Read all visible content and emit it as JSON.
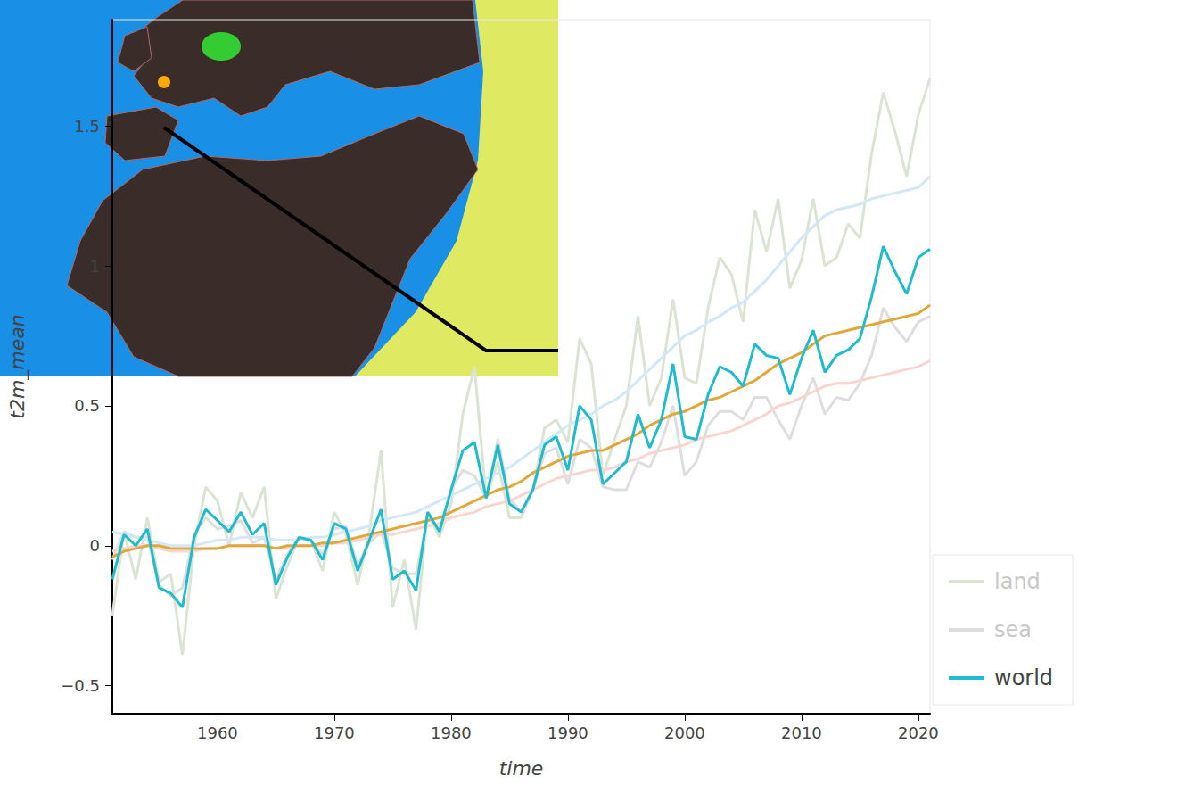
{
  "chart_data": {
    "type": "line",
    "x_label": "time",
    "y_label": "t2m_mean",
    "x": [
      1951,
      1952,
      1953,
      1954,
      1955,
      1956,
      1957,
      1958,
      1959,
      1960,
      1961,
      1962,
      1963,
      1964,
      1965,
      1966,
      1967,
      1968,
      1969,
      1970,
      1971,
      1972,
      1973,
      1974,
      1975,
      1976,
      1977,
      1978,
      1979,
      1980,
      1981,
      1982,
      1983,
      1984,
      1985,
      1986,
      1987,
      1988,
      1989,
      1990,
      1991,
      1992,
      1993,
      1994,
      1995,
      1996,
      1997,
      1998,
      1999,
      2000,
      2001,
      2002,
      2003,
      2004,
      2005,
      2006,
      2007,
      2008,
      2009,
      2010,
      2011,
      2012,
      2013,
      2014,
      2015,
      2016,
      2017,
      2018,
      2019,
      2020,
      2021
    ],
    "xlim": [
      1951,
      2021
    ],
    "xticks": [
      1960,
      1970,
      1980,
      1990,
      2000,
      2010,
      2020
    ],
    "ylim": [
      -0.6,
      1.88
    ],
    "yticks": [
      {
        "value": -0.5,
        "label": "−0.5"
      },
      0,
      0.5,
      1,
      1.5
    ],
    "grid": false,
    "legend": "right",
    "series": [
      {
        "name": "land",
        "color": "#dbe4d3",
        "line_style": "muted",
        "values": [
          -0.25,
          0.05,
          -0.12,
          0.1,
          -0.13,
          -0.1,
          -0.39,
          0.0,
          0.21,
          0.16,
          0.0,
          0.19,
          0.1,
          0.21,
          -0.19,
          -0.07,
          0.03,
          0.02,
          -0.09,
          0.12,
          0.04,
          -0.14,
          0.05,
          0.34,
          -0.22,
          -0.05,
          -0.3,
          0.12,
          0.03,
          0.15,
          0.47,
          0.64,
          0.17,
          0.3,
          0.1,
          0.1,
          0.2,
          0.42,
          0.45,
          0.37,
          0.74,
          0.65,
          0.25,
          0.38,
          0.5,
          0.82,
          0.5,
          0.6,
          0.88,
          0.6,
          0.58,
          0.85,
          1.03,
          0.97,
          0.8,
          1.2,
          1.05,
          1.24,
          0.92,
          1.02,
          1.24,
          1.0,
          1.03,
          1.15,
          1.1,
          1.4,
          1.62,
          1.48,
          1.32,
          1.54,
          1.67
        ]
      },
      {
        "name": "sea",
        "color": "#dedede",
        "line_style": "muted",
        "values": [
          -0.05,
          0.05,
          0.03,
          0.03,
          -0.14,
          -0.18,
          -0.15,
          0.04,
          0.1,
          0.06,
          0.07,
          0.09,
          0.01,
          0.03,
          -0.12,
          -0.03,
          0.03,
          0.02,
          -0.03,
          0.06,
          0.07,
          -0.07,
          0.01,
          0.05,
          -0.08,
          -0.1,
          -0.1,
          0.1,
          0.06,
          0.2,
          0.27,
          0.25,
          0.17,
          0.38,
          0.17,
          0.12,
          0.2,
          0.33,
          0.35,
          0.22,
          0.38,
          0.35,
          0.21,
          0.2,
          0.2,
          0.3,
          0.28,
          0.37,
          0.5,
          0.25,
          0.3,
          0.43,
          0.48,
          0.48,
          0.45,
          0.53,
          0.53,
          0.45,
          0.38,
          0.5,
          0.6,
          0.47,
          0.53,
          0.52,
          0.58,
          0.68,
          0.85,
          0.78,
          0.73,
          0.8,
          0.82
        ]
      },
      {
        "color": "#d2e8f7",
        "values": [
          0.05,
          0.04,
          0.03,
          0.02,
          0.01,
          0.0,
          0.0,
          0.0,
          0.01,
          0.02,
          0.02,
          0.03,
          0.03,
          0.03,
          0.02,
          0.02,
          0.02,
          0.03,
          0.03,
          0.04,
          0.05,
          0.06,
          0.07,
          0.09,
          0.1,
          0.11,
          0.12,
          0.14,
          0.16,
          0.18,
          0.2,
          0.22,
          0.24,
          0.26,
          0.28,
          0.31,
          0.34,
          0.37,
          0.4,
          0.43,
          0.45,
          0.47,
          0.5,
          0.52,
          0.55,
          0.59,
          0.63,
          0.67,
          0.71,
          0.75,
          0.77,
          0.8,
          0.82,
          0.85,
          0.87,
          0.91,
          0.95,
          1.0,
          1.05,
          1.1,
          1.14,
          1.18,
          1.2,
          1.21,
          1.22,
          1.24,
          1.25,
          1.26,
          1.27,
          1.28,
          1.32
        ]
      },
      {
        "color": "#f8d6cf",
        "values": [
          -0.02,
          -0.01,
          0.0,
          0.0,
          -0.01,
          -0.02,
          -0.02,
          -0.02,
          -0.01,
          -0.01,
          0.0,
          0.0,
          0.0,
          0.0,
          -0.01,
          -0.01,
          0.0,
          0.0,
          0.0,
          0.01,
          0.01,
          0.02,
          0.03,
          0.04,
          0.04,
          0.05,
          0.06,
          0.07,
          0.08,
          0.1,
          0.11,
          0.12,
          0.14,
          0.15,
          0.16,
          0.18,
          0.2,
          0.22,
          0.24,
          0.25,
          0.26,
          0.27,
          0.27,
          0.28,
          0.3,
          0.31,
          0.33,
          0.34,
          0.35,
          0.36,
          0.38,
          0.39,
          0.4,
          0.41,
          0.43,
          0.45,
          0.47,
          0.5,
          0.51,
          0.53,
          0.55,
          0.57,
          0.58,
          0.58,
          0.59,
          0.6,
          0.61,
          0.62,
          0.63,
          0.64,
          0.66
        ]
      },
      {
        "color": "#e0a83a",
        "values": [
          -0.04,
          -0.02,
          -0.01,
          0.0,
          0.0,
          -0.01,
          -0.01,
          -0.01,
          -0.01,
          -0.01,
          0.0,
          0.0,
          0.0,
          0.0,
          -0.01,
          0.0,
          0.0,
          0.0,
          0.01,
          0.01,
          0.02,
          0.03,
          0.04,
          0.05,
          0.06,
          0.07,
          0.08,
          0.09,
          0.1,
          0.12,
          0.14,
          0.16,
          0.18,
          0.2,
          0.21,
          0.23,
          0.26,
          0.28,
          0.3,
          0.32,
          0.33,
          0.34,
          0.34,
          0.36,
          0.38,
          0.4,
          0.43,
          0.45,
          0.47,
          0.48,
          0.5,
          0.52,
          0.53,
          0.55,
          0.57,
          0.59,
          0.62,
          0.65,
          0.67,
          0.69,
          0.72,
          0.75,
          0.76,
          0.77,
          0.78,
          0.79,
          0.8,
          0.81,
          0.82,
          0.83,
          0.86
        ]
      },
      {
        "name": "world",
        "color": "#1fbccd",
        "values": [
          -0.12,
          0.04,
          0.0,
          0.06,
          -0.15,
          -0.17,
          -0.22,
          0.03,
          0.13,
          0.09,
          0.05,
          0.12,
          0.04,
          0.08,
          -0.14,
          -0.04,
          0.03,
          0.02,
          -0.05,
          0.08,
          0.06,
          -0.09,
          0.02,
          0.13,
          -0.12,
          -0.09,
          -0.16,
          0.12,
          0.05,
          0.2,
          0.34,
          0.37,
          0.17,
          0.36,
          0.15,
          0.12,
          0.2,
          0.36,
          0.39,
          0.27,
          0.5,
          0.45,
          0.22,
          0.26,
          0.3,
          0.47,
          0.35,
          0.45,
          0.65,
          0.39,
          0.38,
          0.54,
          0.64,
          0.62,
          0.57,
          0.72,
          0.68,
          0.67,
          0.54,
          0.67,
          0.77,
          0.62,
          0.68,
          0.7,
          0.74,
          0.89,
          1.07,
          0.98,
          0.9,
          1.03,
          1.06
        ]
      }
    ]
  }
}
